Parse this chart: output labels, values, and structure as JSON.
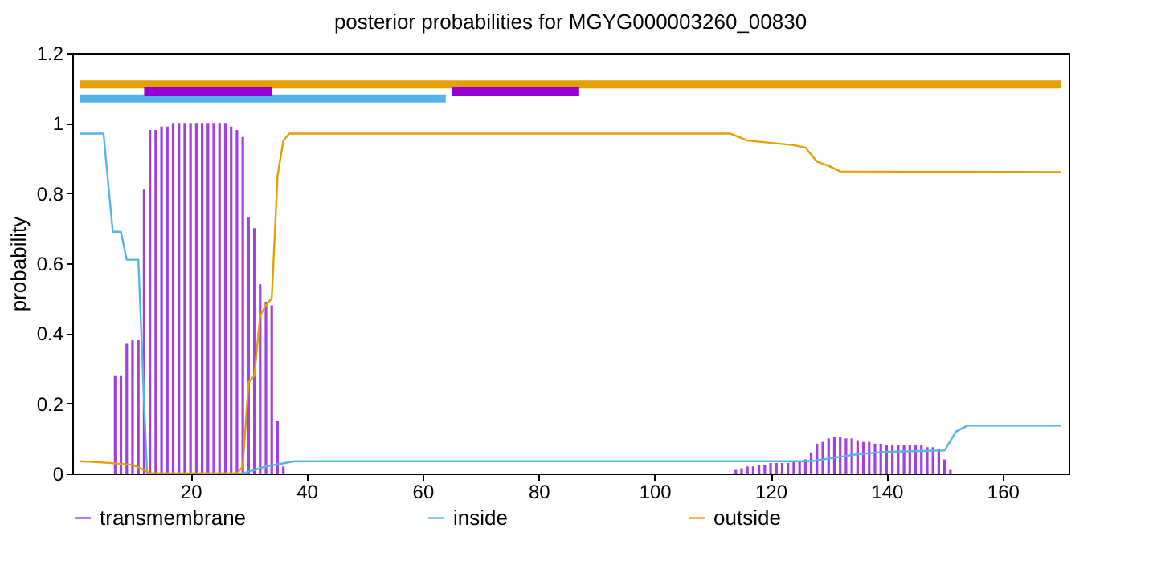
{
  "chart_data": {
    "type": "line",
    "title": "posterior probabilities for MGYG000003260_00830",
    "ylabel": "probability",
    "xlim": [
      1,
      170
    ],
    "xticks": [
      20,
      40,
      60,
      80,
      100,
      120,
      140,
      160
    ],
    "ylim": [
      0,
      1.2
    ],
    "yticks": [
      0,
      0.2,
      0.4,
      0.6,
      0.8,
      1,
      1.2
    ],
    "grid": false,
    "legend": "bottom",
    "marker": "none",
    "line_style": "solid",
    "series": [
      {
        "name": "transmembrane",
        "type": "bar",
        "color": "#a040e0",
        "x": [
          7,
          8,
          9,
          10,
          11,
          12,
          13,
          14,
          15,
          16,
          17,
          18,
          19,
          20,
          21,
          22,
          23,
          24,
          25,
          26,
          27,
          28,
          29,
          30,
          31,
          32,
          33,
          34,
          35,
          36,
          114,
          115,
          116,
          117,
          118,
          119,
          120,
          121,
          122,
          123,
          124,
          125,
          126,
          127,
          128,
          129,
          130,
          131,
          132,
          133,
          134,
          135,
          136,
          137,
          138,
          139,
          140,
          141,
          142,
          143,
          144,
          145,
          146,
          147,
          148,
          149,
          150,
          151
        ],
        "values": [
          0.28,
          0.28,
          0.37,
          0.38,
          0.38,
          0.81,
          0.98,
          0.98,
          0.99,
          0.99,
          1,
          1,
          1,
          1,
          1,
          1,
          1,
          1,
          1,
          1,
          0.99,
          0.98,
          0.96,
          0.73,
          0.7,
          0.54,
          0.49,
          0.48,
          0.15,
          0.02,
          0.01,
          0.015,
          0.02,
          0.02,
          0.025,
          0.025,
          0.03,
          0.03,
          0.03,
          0.03,
          0.035,
          0.035,
          0.04,
          0.06,
          0.085,
          0.09,
          0.1,
          0.105,
          0.105,
          0.1,
          0.1,
          0.095,
          0.09,
          0.09,
          0.085,
          0.085,
          0.08,
          0.08,
          0.08,
          0.08,
          0.08,
          0.08,
          0.08,
          0.075,
          0.075,
          0.07,
          0.04,
          0.01
        ]
      },
      {
        "name": "inside",
        "color": "#56b4e9",
        "x": [
          1,
          5,
          6.6,
          8,
          9,
          11,
          12.5,
          29,
          33,
          38,
          127,
          131,
          135,
          140,
          150,
          152,
          154,
          170
        ],
        "values": [
          0.97,
          0.97,
          0.69,
          0.69,
          0.61,
          0.61,
          0,
          0,
          0.02,
          0.035,
          0.035,
          0.045,
          0.055,
          0.062,
          0.066,
          0.12,
          0.137,
          0.137
        ]
      },
      {
        "name": "outside",
        "color": "#e69f00",
        "x": [
          1,
          6,
          10,
          12,
          13,
          28,
          29,
          30,
          31,
          32,
          33,
          34,
          35,
          36,
          37,
          113,
          116,
          124,
          126,
          128,
          130,
          132,
          170
        ],
        "values": [
          0.035,
          0.03,
          0.025,
          0.01,
          0,
          0,
          0.02,
          0.26,
          0.28,
          0.45,
          0.48,
          0.5,
          0.85,
          0.95,
          0.97,
          0.97,
          0.95,
          0.937,
          0.93,
          0.89,
          0.878,
          0.862,
          0.86
        ]
      },
      {
        "color": "#e69f00",
        "x": [
          1,
          170
        ],
        "values": [
          1.11,
          1.11
        ]
      },
      {
        "color": "#56b4e9",
        "x": [
          1,
          64
        ],
        "values": [
          1.07,
          1.07
        ]
      },
      {
        "color": "#9400d3",
        "x": [
          12,
          34
        ],
        "values": [
          1.09,
          1.09
        ]
      },
      {
        "color": "#9400d3",
        "x": [
          65,
          87
        ],
        "values": [
          1.09,
          1.09
        ]
      }
    ]
  }
}
